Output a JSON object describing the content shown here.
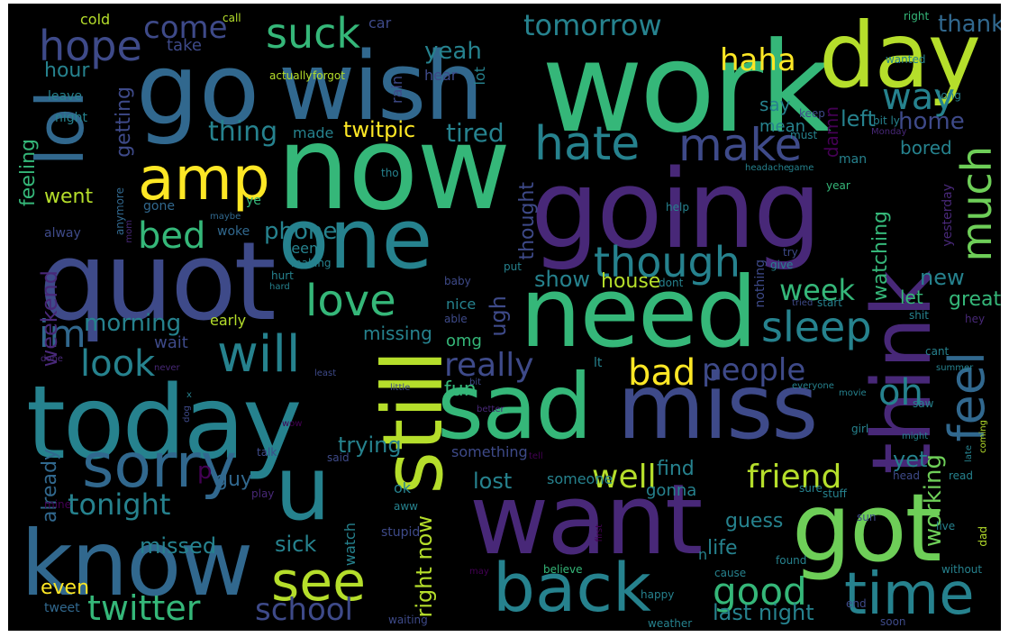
{
  "wordcloud": {
    "palette": {
      "purple": "#440154",
      "indigo": "#482878",
      "blue_violet": "#3e4a89",
      "blue": "#31688e",
      "teal_blue": "#26828e",
      "teal": "#1f9e89",
      "green_teal": "#35b779",
      "green": "#6ece58",
      "lime": "#b5de2b",
      "yellow": "#fde725"
    },
    "words": [
      {
        "text": "work",
        "color": "#35b779"
      },
      {
        "text": "now",
        "color": "#35b779"
      },
      {
        "text": "go",
        "color": "#31688e"
      },
      {
        "text": "wish",
        "color": "#31688e"
      },
      {
        "text": "day",
        "color": "#b5de2b"
      },
      {
        "text": "going",
        "color": "#482878"
      },
      {
        "text": "quot",
        "color": "#3e4a89"
      },
      {
        "text": "one",
        "color": "#26828e"
      },
      {
        "text": "need",
        "color": "#35b779"
      },
      {
        "text": "today",
        "color": "#26828e"
      },
      {
        "text": "sad",
        "color": "#35b779"
      },
      {
        "text": "miss",
        "color": "#3e4a89"
      },
      {
        "text": "want",
        "color": "#482878"
      },
      {
        "text": "know",
        "color": "#31688e"
      },
      {
        "text": "got",
        "color": "#6ece58"
      },
      {
        "text": "back",
        "color": "#26828e"
      },
      {
        "text": "time",
        "color": "#26828e"
      },
      {
        "text": "still",
        "color": "#b5de2b"
      },
      {
        "text": "think",
        "color": "#482878"
      },
      {
        "text": "lol",
        "color": "#31688e"
      },
      {
        "text": "amp",
        "color": "#fde725"
      },
      {
        "text": "u",
        "color": "#26828e"
      },
      {
        "text": "sorry",
        "color": "#31688e"
      },
      {
        "text": "hate",
        "color": "#26828e"
      },
      {
        "text": "make",
        "color": "#3e4a89"
      },
      {
        "text": "much",
        "color": "#6ece58"
      },
      {
        "text": "feel",
        "color": "#31688e"
      },
      {
        "text": "will",
        "color": "#26828e"
      },
      {
        "text": "see",
        "color": "#b5de2b"
      },
      {
        "text": "love",
        "color": "#35b779"
      },
      {
        "text": "though",
        "color": "#26828e"
      },
      {
        "text": "sleep",
        "color": "#26828e"
      },
      {
        "text": "hope",
        "color": "#3e4a89"
      },
      {
        "text": "suck",
        "color": "#35b779"
      },
      {
        "text": "tomorrow",
        "color": "#26828e"
      },
      {
        "text": "im",
        "color": "#31688e"
      },
      {
        "text": "bad",
        "color": "#fde725"
      },
      {
        "text": "people",
        "color": "#3e4a89"
      },
      {
        "text": "oh",
        "color": "#26828e"
      },
      {
        "text": "good",
        "color": "#35b779"
      },
      {
        "text": "friend",
        "color": "#b5de2b"
      },
      {
        "text": "well",
        "color": "#b5de2b"
      },
      {
        "text": "twitter",
        "color": "#35b779"
      },
      {
        "text": "school",
        "color": "#3e4a89"
      },
      {
        "text": "tonight",
        "color": "#26828e"
      },
      {
        "text": "look",
        "color": "#26828e"
      },
      {
        "text": "come",
        "color": "#3e4a89"
      },
      {
        "text": "haha",
        "color": "#fde725"
      },
      {
        "text": "bed",
        "color": "#35b779"
      },
      {
        "text": "way",
        "color": "#26828e"
      },
      {
        "text": "week",
        "color": "#35b779"
      },
      {
        "text": "really",
        "color": "#3e4a89"
      },
      {
        "text": "working",
        "color": "#6ece58"
      },
      {
        "text": "morning",
        "color": "#26828e"
      },
      {
        "text": "thing",
        "color": "#26828e"
      },
      {
        "text": "phone",
        "color": "#26828e"
      },
      {
        "text": "tired",
        "color": "#26828e"
      },
      {
        "text": "yeah",
        "color": "#26828e"
      },
      {
        "text": "left",
        "color": "#26828e"
      },
      {
        "text": "thank",
        "color": "#31688e"
      },
      {
        "text": "home",
        "color": "#3e4a89"
      },
      {
        "text": "last night",
        "color": "#26828e"
      },
      {
        "text": "right now",
        "color": "#b5de2b"
      },
      {
        "text": "lost",
        "color": "#26828e"
      },
      {
        "text": "find",
        "color": "#26828e"
      },
      {
        "text": "guy",
        "color": "#31688e"
      },
      {
        "text": "sick",
        "color": "#26828e"
      },
      {
        "text": "missed",
        "color": "#26828e"
      },
      {
        "text": "even",
        "color": "#fde725"
      },
      {
        "text": "trying",
        "color": "#26828e"
      },
      {
        "text": "ugh",
        "color": "#3e4a89"
      },
      {
        "text": "show",
        "color": "#26828e"
      },
      {
        "text": "house",
        "color": "#b5de2b"
      },
      {
        "text": "guess",
        "color": "#26828e"
      },
      {
        "text": "life",
        "color": "#26828e"
      },
      {
        "text": "yet",
        "color": "#26828e"
      },
      {
        "text": "new",
        "color": "#26828e"
      },
      {
        "text": "great",
        "color": "#35b779"
      },
      {
        "text": "twitpic",
        "color": "#fde725"
      },
      {
        "text": "weekend",
        "color": "#482878"
      },
      {
        "text": "already",
        "color": "#31688e"
      },
      {
        "text": "getting",
        "color": "#3e4a89"
      },
      {
        "text": "feeling",
        "color": "#35b779"
      },
      {
        "text": "hour",
        "color": "#26828e"
      },
      {
        "text": "went",
        "color": "#b5de2b"
      },
      {
        "text": "thought",
        "color": "#3e4a89"
      },
      {
        "text": "watching",
        "color": "#35b779"
      },
      {
        "text": "omg",
        "color": "#35b779"
      },
      {
        "text": "missing",
        "color": "#26828e"
      },
      {
        "text": "fun",
        "color": "#35b779"
      },
      {
        "text": "gonna",
        "color": "#26828e"
      },
      {
        "text": "say",
        "color": "#26828e"
      },
      {
        "text": "mean",
        "color": "#26828e"
      },
      {
        "text": "damn",
        "color": "#440154"
      },
      {
        "text": "bored",
        "color": "#26828e"
      },
      {
        "text": "let",
        "color": "#35b779"
      },
      {
        "text": "made",
        "color": "#26828e"
      },
      {
        "text": "cold",
        "color": "#b5de2b"
      },
      {
        "text": "take",
        "color": "#3e4a89"
      },
      {
        "text": "car",
        "color": "#3e4a89"
      },
      {
        "text": "call",
        "color": "#b5de2b"
      },
      {
        "text": "right",
        "color": "#35b779"
      },
      {
        "text": "wanted",
        "color": "#26828e"
      },
      {
        "text": "actually",
        "color": "#b5de2b"
      },
      {
        "text": "forgot",
        "color": "#b5de2b"
      },
      {
        "text": "hear",
        "color": "#3e4a89"
      },
      {
        "text": "rain",
        "color": "#3e4a89"
      },
      {
        "text": "lot",
        "color": "#26828e"
      },
      {
        "text": "leave",
        "color": "#26828e"
      },
      {
        "text": "night",
        "color": "#26828e"
      },
      {
        "text": "keep",
        "color": "#3e4a89"
      },
      {
        "text": "must",
        "color": "#26828e"
      },
      {
        "text": "bit ly",
        "color": "#26828e"
      },
      {
        "text": "Monday",
        "color": "#482878"
      },
      {
        "text": "long",
        "color": "#26828e"
      },
      {
        "text": "man",
        "color": "#26828e"
      },
      {
        "text": "tho",
        "color": "#26828e"
      },
      {
        "text": "headache",
        "color": "#26828e"
      },
      {
        "text": "game",
        "color": "#26828e"
      },
      {
        "text": "year",
        "color": "#35b779"
      },
      {
        "text": "ye",
        "color": "#35b779"
      },
      {
        "text": "gone",
        "color": "#31688e"
      },
      {
        "text": "anymore",
        "color": "#31688e"
      },
      {
        "text": "maybe",
        "color": "#31688e"
      },
      {
        "text": "woke",
        "color": "#31688e"
      },
      {
        "text": "alway",
        "color": "#3e4a89"
      },
      {
        "text": "seem",
        "color": "#26828e"
      },
      {
        "text": "making",
        "color": "#26828e"
      },
      {
        "text": "hurt",
        "color": "#26828e"
      },
      {
        "text": "hard",
        "color": "#26828e"
      },
      {
        "text": "nothing",
        "color": "#3e4a89"
      },
      {
        "text": "give",
        "color": "#26828e"
      },
      {
        "text": "try",
        "color": "#3e4a89"
      },
      {
        "text": "yesterday",
        "color": "#482878"
      },
      {
        "text": "help",
        "color": "#26828e"
      },
      {
        "text": "baby",
        "color": "#3e4a89"
      },
      {
        "text": "dont",
        "color": "#26828e"
      },
      {
        "text": "put",
        "color": "#26828e"
      },
      {
        "text": "nice",
        "color": "#26828e"
      },
      {
        "text": "able",
        "color": "#3e4a89"
      },
      {
        "text": "tried",
        "color": "#3e4a89"
      },
      {
        "text": "start",
        "color": "#26828e"
      },
      {
        "text": "shit",
        "color": "#26828e"
      },
      {
        "text": "hey",
        "color": "#482878"
      },
      {
        "text": "wait",
        "color": "#3e4a89"
      },
      {
        "text": "early",
        "color": "#b5de2b"
      },
      {
        "text": "done",
        "color": "#482878"
      },
      {
        "text": "never",
        "color": "#482878"
      },
      {
        "text": "least",
        "color": "#3e4a89"
      },
      {
        "text": "little",
        "color": "#3e4a89"
      },
      {
        "text": "bit",
        "color": "#3e4a89"
      },
      {
        "text": "lt",
        "color": "#26828e"
      },
      {
        "text": "better",
        "color": "#482878"
      },
      {
        "text": "cant",
        "color": "#26828e"
      },
      {
        "text": "summer",
        "color": "#26828e"
      },
      {
        "text": "everyone",
        "color": "#26828e"
      },
      {
        "text": "movie",
        "color": "#26828e"
      },
      {
        "text": "saw",
        "color": "#26828e"
      },
      {
        "text": "girl",
        "color": "#26828e"
      },
      {
        "text": "might",
        "color": "#26828e"
      },
      {
        "text": "late",
        "color": "#26828e"
      },
      {
        "text": "coming",
        "color": "#b5de2b"
      },
      {
        "text": "wow",
        "color": "#440154"
      },
      {
        "text": "talk",
        "color": "#3e4a89"
      },
      {
        "text": "said",
        "color": "#3e4a89"
      },
      {
        "text": "something",
        "color": "#3e4a89"
      },
      {
        "text": "someone",
        "color": "#26828e"
      },
      {
        "text": "ok",
        "color": "#26828e"
      },
      {
        "text": "aww",
        "color": "#26828e"
      },
      {
        "text": "play",
        "color": "#482878"
      },
      {
        "text": "mine",
        "color": "#440154"
      },
      {
        "text": "watch",
        "color": "#26828e"
      },
      {
        "text": "stupid",
        "color": "#3e4a89"
      },
      {
        "text": "first",
        "color": "#440154"
      },
      {
        "text": "tell",
        "color": "#440154"
      },
      {
        "text": "sure",
        "color": "#26828e"
      },
      {
        "text": "stuff",
        "color": "#26828e"
      },
      {
        "text": "head",
        "color": "#3e4a89"
      },
      {
        "text": "read",
        "color": "#26828e"
      },
      {
        "text": "sun",
        "color": "#3e4a89"
      },
      {
        "text": "live",
        "color": "#26828e"
      },
      {
        "text": "dad",
        "color": "#b5de2b"
      },
      {
        "text": "n",
        "color": "#26828e"
      },
      {
        "text": "may",
        "color": "#440154"
      },
      {
        "text": "believe",
        "color": "#35b779"
      },
      {
        "text": "happy",
        "color": "#26828e"
      },
      {
        "text": "cause",
        "color": "#26828e"
      },
      {
        "text": "found",
        "color": "#26828e"
      },
      {
        "text": "without",
        "color": "#26828e"
      },
      {
        "text": "end",
        "color": "#3e4a89"
      },
      {
        "text": "soon",
        "color": "#3e4a89"
      },
      {
        "text": "weather",
        "color": "#26828e"
      },
      {
        "text": "waiting",
        "color": "#3e4a89"
      },
      {
        "text": "tweet",
        "color": "#31688e"
      },
      {
        "text": "x",
        "color": "#26828e"
      },
      {
        "text": "dog",
        "color": "#3e4a89"
      },
      {
        "text": "mom",
        "color": "#482878"
      },
      {
        "text": "p",
        "color": "#440154"
      }
    ]
  }
}
